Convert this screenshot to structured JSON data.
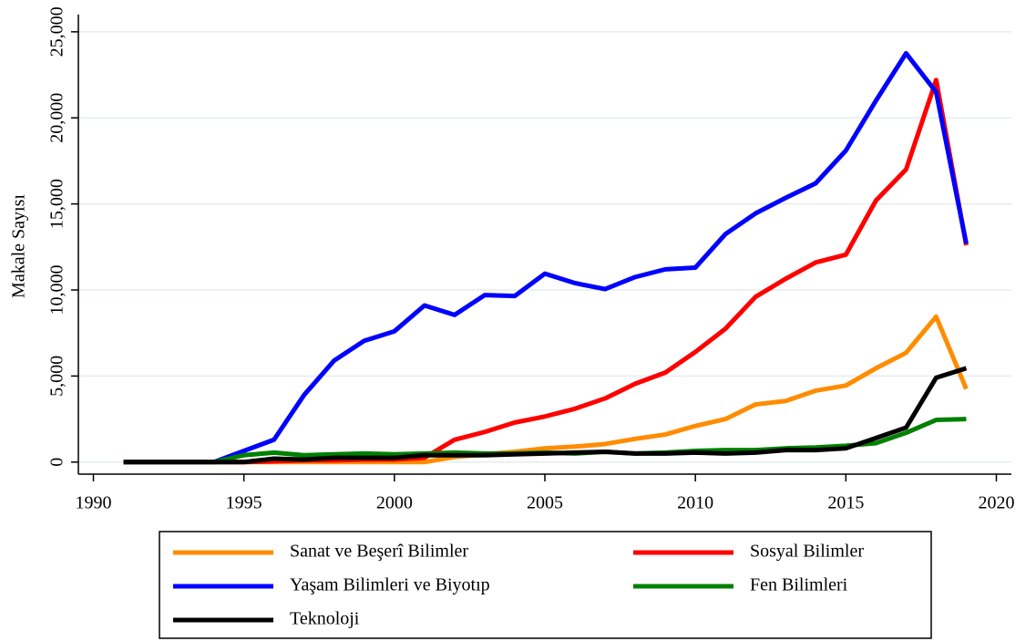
{
  "chart_data": {
    "type": "line",
    "y_label": "Makale Sayısı",
    "xlim": [
      1989.5,
      2020.5
    ],
    "xticks": [
      1990,
      1995,
      2000,
      2005,
      2010,
      2015,
      2020
    ],
    "ylim": [
      -700,
      26000
    ],
    "yticks": [
      0,
      {
        "value": 5000,
        "label": "5,000"
      },
      {
        "value": 10000,
        "label": "10,000"
      },
      {
        "value": 15000,
        "label": "15,000"
      },
      {
        "value": 20000,
        "label": "20,000"
      },
      {
        "value": 25000,
        "label": "25,000"
      }
    ],
    "grid": true,
    "legend": "bottom",
    "x": [
      1991,
      1992,
      1993,
      1994,
      1995,
      1996,
      1997,
      1998,
      1999,
      2000,
      2001,
      2002,
      2003,
      2004,
      2005,
      2006,
      2007,
      2008,
      2009,
      2010,
      2011,
      2012,
      2013,
      2014,
      2015,
      2016,
      2017,
      2018,
      2019
    ],
    "series": [
      {
        "name": "Sanat ve Beşerî Bilimler",
        "color": "#ff8c00",
        "values": [
          0,
          0,
          0,
          0,
          0,
          0,
          0,
          0,
          0,
          0,
          0,
          300,
          450,
          600,
          800,
          900,
          1050,
          1350,
          1600,
          2100,
          2500,
          3350,
          3550,
          4150,
          4450,
          5450,
          6350,
          8450,
          4250
        ]
      },
      {
        "name": "Sosyal Bilimler",
        "color": "#ff0000",
        "values": [
          0,
          0,
          0,
          0,
          0,
          50,
          100,
          100,
          150,
          150,
          250,
          1300,
          1750,
          2300,
          2650,
          3100,
          3700,
          4550,
          5200,
          6400,
          7750,
          9600,
          10650,
          11600,
          12050,
          15200,
          17000,
          22200,
          12600
        ]
      },
      {
        "name": "Yaşam Bilimleri ve Biyotıp",
        "color": "#0000ff",
        "values": [
          0,
          0,
          0,
          0,
          650,
          1300,
          3900,
          5900,
          7050,
          7600,
          9100,
          8550,
          9700,
          9650,
          10950,
          10400,
          10050,
          10750,
          11200,
          11300,
          13250,
          14450,
          15350,
          16200,
          18100,
          21000,
          23750,
          21500,
          12700
        ]
      },
      {
        "name": "Fen Bilimleri",
        "color": "#008000",
        "values": [
          0,
          0,
          0,
          0,
          400,
          550,
          400,
          450,
          500,
          450,
          500,
          550,
          500,
          500,
          550,
          500,
          600,
          500,
          550,
          650,
          700,
          700,
          800,
          850,
          950,
          1100,
          1700,
          2450,
          2500
        ]
      },
      {
        "name": "Teknoloji",
        "color": "#000000",
        "values": [
          0,
          0,
          0,
          0,
          0,
          200,
          150,
          250,
          250,
          250,
          400,
          400,
          400,
          450,
          500,
          550,
          600,
          500,
          500,
          550,
          500,
          550,
          700,
          700,
          800,
          1400,
          2000,
          4900,
          5450
        ]
      }
    ]
  }
}
